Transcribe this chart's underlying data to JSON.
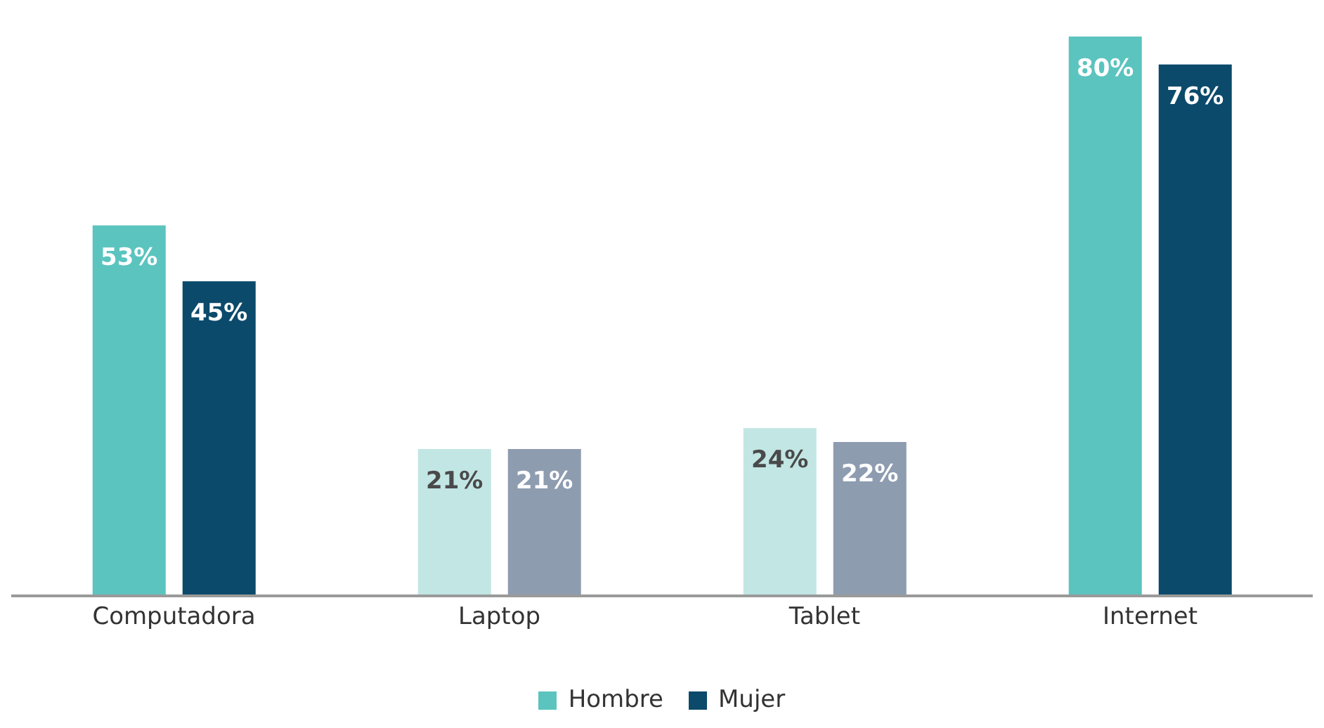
{
  "chart_data": {
    "type": "bar",
    "categories": [
      "Computadora",
      "Laptop",
      "Tablet",
      "Internet"
    ],
    "series": [
      {
        "name": "Hombre",
        "color": "#5bc4bf",
        "colors": [
          "#5bc4bf",
          "#c2e6e4",
          "#c2e6e4",
          "#5bc4bf"
        ],
        "values": [
          53,
          21,
          24,
          80
        ],
        "value_labels": [
          "53%",
          "21%",
          "24%",
          "80%"
        ]
      },
      {
        "name": "Mujer",
        "color": "#0b4a6b",
        "colors": [
          "#0b4a6b",
          "#8e9cb0",
          "#8e9cb0",
          "#0b4a6b"
        ],
        "values": [
          45,
          21,
          22,
          76
        ],
        "value_labels": [
          "45%",
          "21%",
          "22%",
          "76%"
        ]
      }
    ],
    "legend": "bottom",
    "grid": false
  }
}
